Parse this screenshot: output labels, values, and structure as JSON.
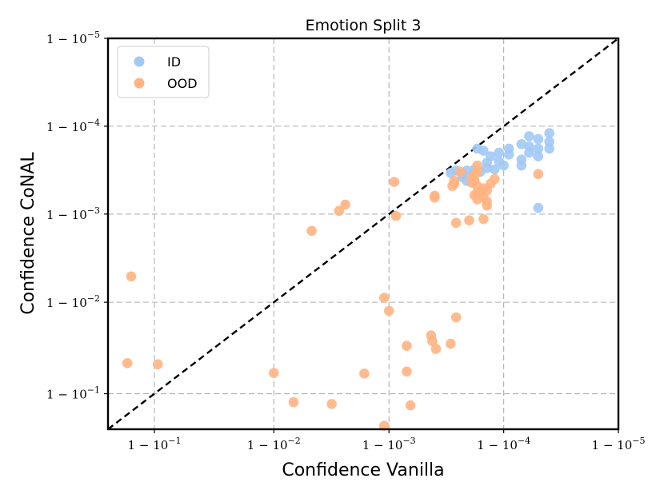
{
  "chart_data": {
    "type": "scatter",
    "title": "Emotion Split 3",
    "xlabel": "Confidence Vanilla",
    "ylabel": "Confidence CoNAL",
    "scale": "logit",
    "xlim": [
      0.78,
      0.99999
    ],
    "ylim": [
      0.78,
      0.99999
    ],
    "x_ticks": [
      0.9,
      0.99,
      0.999,
      0.9999,
      0.99999
    ],
    "y_ticks": [
      0.9,
      0.99,
      0.999,
      0.9999,
      0.99999
    ],
    "x_tick_labels": [
      {
        "base": "1 − 10",
        "exp": "−1"
      },
      {
        "base": "1 − 10",
        "exp": "−2"
      },
      {
        "base": "1 − 10",
        "exp": "−3"
      },
      {
        "base": "1 − 10",
        "exp": "−4"
      },
      {
        "base": "1 − 10",
        "exp": "−5"
      }
    ],
    "y_tick_labels": [
      {
        "base": "1 − 10",
        "exp": "−1"
      },
      {
        "base": "1 − 10",
        "exp": "−2"
      },
      {
        "base": "1 − 10",
        "exp": "−3"
      },
      {
        "base": "1 − 10",
        "exp": "−4"
      },
      {
        "base": "1 − 10",
        "exp": "−5"
      }
    ],
    "grid": true,
    "diagonal": "y = x",
    "legend_position": "top-left",
    "series": [
      {
        "name": "ID",
        "color": "#a1c9f4",
        "points": [
          [
            0.99996,
            0.99988
          ],
          [
            0.99996,
            0.99985
          ],
          [
            0.99996,
            0.99982
          ],
          [
            0.99995,
            0.99986
          ],
          [
            0.99995,
            0.99982
          ],
          [
            0.99995,
            0.99978
          ],
          [
            0.99994,
            0.99987
          ],
          [
            0.99994,
            0.99983
          ],
          [
            0.99994,
            0.9998
          ],
          [
            0.99993,
            0.99976
          ],
          [
            0.99993,
            0.99972
          ],
          [
            0.99993,
            0.99984
          ],
          [
            0.99991,
            0.99982
          ],
          [
            0.99991,
            0.99979
          ],
          [
            0.99989,
            0.9998
          ],
          [
            0.99989,
            0.99975
          ],
          [
            0.99987,
            0.99978
          ],
          [
            0.99986,
            0.99974
          ],
          [
            0.99986,
            0.9997
          ],
          [
            0.99984,
            0.99967
          ],
          [
            0.99988,
            0.99969
          ],
          [
            0.9999,
            0.99972
          ],
          [
            0.99985,
            0.99981
          ],
          [
            0.99983,
            0.99982
          ],
          [
            0.99982,
            0.99969
          ],
          [
            0.99982,
            0.99958
          ],
          [
            0.99979,
            0.99968
          ],
          [
            0.99977,
            0.99965
          ],
          [
            0.99977,
            0.99962
          ],
          [
            0.99979,
            0.99958
          ],
          [
            0.99974,
            0.99968
          ],
          [
            0.99971,
            0.99966
          ],
          [
            0.99995,
            0.99915
          ]
        ]
      },
      {
        "name": "OOD",
        "color": "#ffb482",
        "points": [
          [
            0.99995,
            0.99965
          ],
          [
            0.99983,
            0.99972
          ],
          [
            0.99983,
            0.99967
          ],
          [
            0.99982,
            0.99964
          ],
          [
            0.99982,
            0.99958
          ],
          [
            0.99981,
            0.99956
          ],
          [
            0.99983,
            0.99952
          ],
          [
            0.99985,
            0.99949
          ],
          [
            0.99988,
            0.9996
          ],
          [
            0.99987,
            0.99955
          ],
          [
            0.99984,
            0.99944
          ],
          [
            0.99983,
            0.99942
          ],
          [
            0.99986,
            0.99946
          ],
          [
            0.99981,
            0.99962
          ],
          [
            0.99976,
            0.99967
          ],
          [
            0.99973,
            0.99958
          ],
          [
            0.99973,
            0.99955
          ],
          [
            0.99972,
            0.99952
          ],
          [
            0.99983,
            0.99943
          ],
          [
            0.99982,
            0.99939
          ],
          [
            0.99985,
            0.99935
          ],
          [
            0.99983,
            0.99932
          ],
          [
            0.99986,
            0.99928
          ],
          [
            0.99986,
            0.9992
          ],
          [
            0.99985,
            0.99886
          ],
          [
            0.9998,
            0.99882
          ],
          [
            0.99974,
            0.99874
          ],
          [
            0.9996,
            0.99938
          ],
          [
            0.9996,
            0.99935
          ],
          [
            0.9991,
            0.99957
          ],
          [
            0.99913,
            0.99895
          ],
          [
            0.9989,
            0.9911
          ],
          [
            0.99974,
            0.9852
          ],
          [
            0.99958,
            0.9728
          ],
          [
            0.99957,
            0.9765
          ],
          [
            0.99971,
            0.9709
          ],
          [
            0.99961,
            0.9668
          ],
          [
            0.9993,
            0.9693
          ],
          [
            0.9993,
            0.9415
          ],
          [
            0.9989,
            0.795
          ],
          [
            0.99935,
            0.869
          ],
          [
            0.99836,
            0.9385
          ],
          [
            0.99685,
            0.873
          ],
          [
            0.999,
            0.9875
          ],
          [
            0.99,
            0.9395
          ],
          [
            0.99325,
            0.8782
          ],
          [
            0.9976,
            0.99922
          ],
          [
            0.99728,
            0.99908
          ],
          [
            0.9953,
            0.99845
          ],
          [
            0.906,
            0.9512
          ],
          [
            0.8395,
            0.9525
          ],
          [
            0.8495,
            0.9949
          ]
        ]
      }
    ]
  }
}
